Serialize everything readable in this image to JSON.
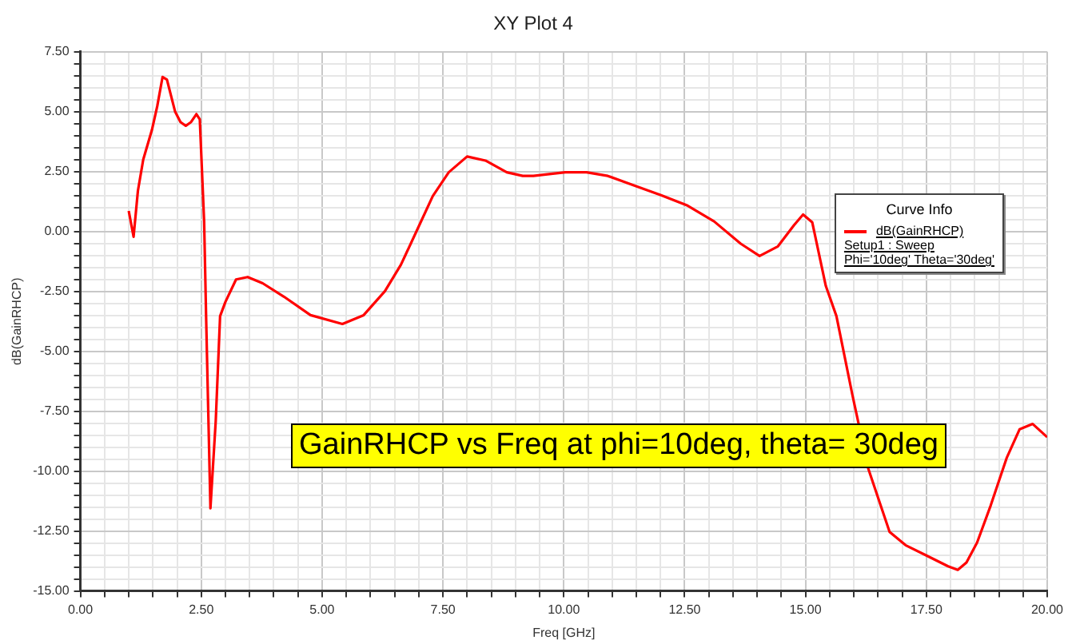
{
  "chart_data": {
    "type": "line",
    "title": "XY Plot 4",
    "xlabel": "Freq [GHz]",
    "ylabel": "dB(GainRHCP)",
    "legend_title": "Curve Info",
    "legend": "right",
    "annotations": [
      "Setup1 : Sweep",
      "Phi='10deg' Theta='30deg'",
      "GainRHCP vs Freq at phi=10deg, theta= 30deg"
    ],
    "grid": true,
    "marker": "none",
    "line_style": "solid",
    "xlim": [
      0,
      20
    ],
    "ylim": [
      -15,
      7.5
    ],
    "xticks": [
      {
        "value": 0,
        "label": "0.00"
      },
      {
        "value": 0.5,
        "label": null
      },
      {
        "value": 1,
        "label": null
      },
      {
        "value": 1.5,
        "label": null
      },
      {
        "value": 2,
        "label": null
      },
      {
        "value": 2.5,
        "label": "2.50"
      },
      {
        "value": 3,
        "label": null
      },
      {
        "value": 3.5,
        "label": null
      },
      {
        "value": 4,
        "label": null
      },
      {
        "value": 4.5,
        "label": null
      },
      {
        "value": 5,
        "label": "5.00"
      },
      {
        "value": 5.5,
        "label": null
      },
      {
        "value": 6,
        "label": null
      },
      {
        "value": 6.5,
        "label": null
      },
      {
        "value": 7,
        "label": null
      },
      {
        "value": 7.5,
        "label": "7.50"
      },
      {
        "value": 8,
        "label": null
      },
      {
        "value": 8.5,
        "label": null
      },
      {
        "value": 9,
        "label": null
      },
      {
        "value": 9.5,
        "label": null
      },
      {
        "value": 10,
        "label": "10.00"
      },
      {
        "value": 10.5,
        "label": null
      },
      {
        "value": 11,
        "label": null
      },
      {
        "value": 11.5,
        "label": null
      },
      {
        "value": 12,
        "label": null
      },
      {
        "value": 12.5,
        "label": "12.50"
      },
      {
        "value": 13,
        "label": null
      },
      {
        "value": 13.5,
        "label": null
      },
      {
        "value": 14,
        "label": null
      },
      {
        "value": 14.5,
        "label": null
      },
      {
        "value": 15,
        "label": "15.00"
      },
      {
        "value": 15.5,
        "label": null
      },
      {
        "value": 16,
        "label": null
      },
      {
        "value": 16.5,
        "label": null
      },
      {
        "value": 17,
        "label": null
      },
      {
        "value": 17.5,
        "label": "17.50"
      },
      {
        "value": 18,
        "label": null
      },
      {
        "value": 18.5,
        "label": null
      },
      {
        "value": 19,
        "label": null
      },
      {
        "value": 19.5,
        "label": null
      },
      {
        "value": 20,
        "label": "20.00"
      }
    ],
    "yticks": [
      {
        "value": -15,
        "label": "-15.00"
      },
      {
        "value": -14.5,
        "label": null
      },
      {
        "value": -14,
        "label": null
      },
      {
        "value": -13.5,
        "label": null
      },
      {
        "value": -13,
        "label": null
      },
      {
        "value": -12.5,
        "label": "-12.50"
      },
      {
        "value": -12,
        "label": null
      },
      {
        "value": -11.5,
        "label": null
      },
      {
        "value": -11,
        "label": null
      },
      {
        "value": -10.5,
        "label": null
      },
      {
        "value": -10,
        "label": "-10.00"
      },
      {
        "value": -9.5,
        "label": null
      },
      {
        "value": -9,
        "label": null
      },
      {
        "value": -8.5,
        "label": null
      },
      {
        "value": -8,
        "label": null
      },
      {
        "value": -7.5,
        "label": "-7.50"
      },
      {
        "value": -7,
        "label": null
      },
      {
        "value": -6.5,
        "label": null
      },
      {
        "value": -6,
        "label": null
      },
      {
        "value": -5.5,
        "label": null
      },
      {
        "value": -5,
        "label": "-5.00"
      },
      {
        "value": -4.5,
        "label": null
      },
      {
        "value": -4,
        "label": null
      },
      {
        "value": -3.5,
        "label": null
      },
      {
        "value": -3,
        "label": null
      },
      {
        "value": -2.5,
        "label": "-2.50"
      },
      {
        "value": -2,
        "label": null
      },
      {
        "value": -1.5,
        "label": null
      },
      {
        "value": -1,
        "label": null
      },
      {
        "value": -0.5,
        "label": null
      },
      {
        "value": 0,
        "label": "0.00"
      },
      {
        "value": 0.5,
        "label": null
      },
      {
        "value": 1,
        "label": null
      },
      {
        "value": 1.5,
        "label": null
      },
      {
        "value": 2,
        "label": null
      },
      {
        "value": 2.5,
        "label": "2.50"
      },
      {
        "value": 3,
        "label": null
      },
      {
        "value": 3.5,
        "label": null
      },
      {
        "value": 4,
        "label": null
      },
      {
        "value": 4.5,
        "label": null
      },
      {
        "value": 5,
        "label": "5.00"
      },
      {
        "value": 5.5,
        "label": null
      },
      {
        "value": 6,
        "label": null
      },
      {
        "value": 6.5,
        "label": null
      },
      {
        "value": 7,
        "label": null
      },
      {
        "value": 7.5,
        "label": "7.50"
      }
    ],
    "series": [
      {
        "name": "dB(GainRHCP)",
        "color": "#ff0000",
        "x": [
          1.0,
          1.1,
          1.19,
          1.3,
          1.48,
          1.59,
          1.7,
          1.79,
          1.96,
          2.07,
          2.18,
          2.29,
          2.4,
          2.47,
          2.56,
          2.6,
          2.69,
          2.8,
          2.89,
          3.0,
          3.22,
          3.46,
          3.77,
          4.21,
          4.76,
          5.42,
          5.86,
          6.3,
          6.63,
          6.96,
          7.29,
          7.62,
          8.0,
          8.38,
          8.82,
          9.15,
          9.37,
          10.03,
          10.47,
          10.91,
          11.46,
          12.01,
          12.56,
          13.11,
          13.66,
          14.05,
          14.43,
          14.76,
          14.95,
          15.14,
          15.42,
          15.64,
          15.97,
          16.3,
          16.74,
          17.07,
          17.51,
          17.95,
          18.15,
          18.33,
          18.55,
          18.83,
          19.16,
          19.43,
          19.7,
          20.0
        ],
        "values": [
          0.86,
          -0.22,
          1.7,
          3.0,
          4.24,
          5.23,
          6.45,
          6.34,
          5.0,
          4.57,
          4.41,
          4.57,
          4.9,
          4.68,
          0.4,
          -3.5,
          -11.55,
          -7.9,
          -3.53,
          -2.94,
          -2.0,
          -1.9,
          -2.16,
          -2.72,
          -3.49,
          -3.86,
          -3.49,
          -2.49,
          -1.39,
          0.04,
          1.48,
          2.47,
          3.13,
          2.96,
          2.47,
          2.32,
          2.32,
          2.47,
          2.47,
          2.32,
          1.92,
          1.52,
          1.08,
          0.42,
          -0.51,
          -1.02,
          -0.62,
          0.26,
          0.71,
          0.38,
          -2.27,
          -3.53,
          -6.82,
          -9.9,
          -12.54,
          -13.09,
          -13.53,
          -13.97,
          -14.12,
          -13.81,
          -12.98,
          -11.44,
          -9.46,
          -8.25,
          -8.03,
          -8.58
        ]
      }
    ]
  }
}
